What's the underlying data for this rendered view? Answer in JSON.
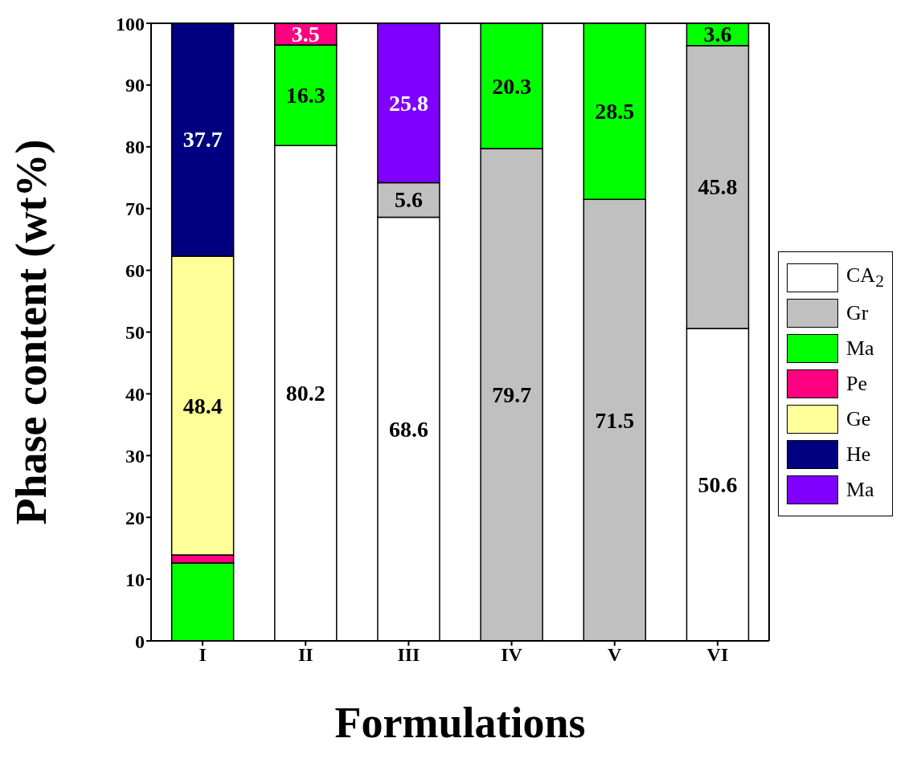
{
  "chart_data": {
    "type": "bar",
    "stacked": true,
    "xlabel": "Formulations",
    "ylabel": "Phase content (wt%)",
    "categories": [
      "I",
      "II",
      "III",
      "IV",
      "V",
      "VI"
    ],
    "series": [
      {
        "name": "CA$_{2}$",
        "color": "#ffffff",
        "values": [
          null,
          80.2,
          68.6,
          null,
          null,
          50.6
        ],
        "value_labels": [
          null,
          "80.2",
          "68.6",
          null,
          null,
          "50.6"
        ]
      },
      {
        "name": "Gr",
        "color": "#c0c0c0",
        "values": [
          null,
          null,
          5.6,
          79.7,
          71.5,
          45.8
        ],
        "value_labels": [
          null,
          null,
          "5.6",
          "79.7",
          "71.5",
          "45.8"
        ]
      },
      {
        "name": "Ma",
        "color": "#00ff00",
        "values": [
          12.6,
          16.3,
          null,
          20.3,
          28.5,
          3.6
        ],
        "value_labels": [
          null,
          "16.3",
          null,
          "20.3",
          "28.5",
          "3.6"
        ]
      },
      {
        "name": "Pe",
        "color": "#ff0080",
        "values": [
          1.3,
          3.5,
          null,
          null,
          null,
          null
        ],
        "value_labels": [
          null,
          "3.5",
          null,
          null,
          null,
          null
        ]
      },
      {
        "name": "Ge",
        "color": "#ffff99",
        "values": [
          48.4,
          null,
          null,
          null,
          null,
          null
        ],
        "value_labels": [
          "48.4",
          null,
          null,
          null,
          null,
          null
        ]
      },
      {
        "name": "He",
        "color": "#000080",
        "values": [
          37.7,
          null,
          null,
          null,
          null,
          null
        ],
        "value_labels": [
          "37.7",
          null,
          null,
          null,
          null,
          null
        ]
      },
      {
        "name": "Ma",
        "color": "#8000ff",
        "values": [
          null,
          null,
          25.8,
          null,
          null,
          null
        ],
        "value_labels": [
          null,
          null,
          "25.8",
          null,
          null,
          null
        ]
      }
    ],
    "ylim": [
      0,
      100
    ],
    "yticks": [
      0,
      10,
      20,
      30,
      40,
      50,
      60,
      70,
      80,
      90,
      100
    ],
    "grid": false,
    "legend": "right"
  }
}
